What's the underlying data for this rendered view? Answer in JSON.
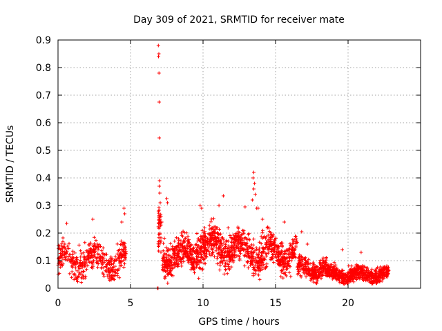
{
  "chart_data": {
    "type": "scatter",
    "title": "Day 309 of 2021, SRMTID for receiver mate",
    "xlabel": "GPS time / hours",
    "ylabel": "SRMTID / TECUs",
    "xlim": [
      0,
      25
    ],
    "ylim": [
      0,
      0.9
    ],
    "xticks": [
      0,
      5,
      10,
      15,
      20
    ],
    "xtick_labels": [
      "0",
      "5",
      "10",
      "15",
      "20"
    ],
    "yticks": [
      0,
      0.1,
      0.2,
      0.3,
      0.4,
      0.5,
      0.6,
      0.7,
      0.8,
      0.9
    ],
    "ytick_labels": [
      "0",
      "0.1",
      "0.2",
      "0.3",
      "0.4",
      "0.5",
      "0.6",
      "0.7",
      "0.8",
      "0.9"
    ],
    "grid": true,
    "marker": "+",
    "color": "#ff0000",
    "series_density": [
      {
        "x": [
          0.0,
          4.7
        ],
        "y_mean": 0.1,
        "y_spread": 0.045,
        "count": 420
      },
      {
        "x": [
          6.9,
          7.1
        ],
        "y_mean": 0.2,
        "y_spread": 0.08,
        "count": 40
      },
      {
        "x": [
          7.2,
          9.5
        ],
        "y_mean": 0.12,
        "y_spread": 0.045,
        "count": 320
      },
      {
        "x": [
          9.5,
          12.5
        ],
        "y_mean": 0.15,
        "y_spread": 0.055,
        "count": 420
      },
      {
        "x": [
          12.5,
          16.5
        ],
        "y_mean": 0.13,
        "y_spread": 0.05,
        "count": 480
      },
      {
        "x": [
          16.5,
          18.5
        ],
        "y_mean": 0.07,
        "y_spread": 0.03,
        "count": 260
      },
      {
        "x": [
          18.5,
          22.8
        ],
        "y_mean": 0.05,
        "y_spread": 0.022,
        "count": 620
      }
    ],
    "outliers": [
      {
        "x": 6.92,
        "y": 0.88
      },
      {
        "x": 6.95,
        "y": 0.85
      },
      {
        "x": 6.93,
        "y": 0.84
      },
      {
        "x": 6.96,
        "y": 0.78
      },
      {
        "x": 6.97,
        "y": 0.675
      },
      {
        "x": 6.98,
        "y": 0.545
      },
      {
        "x": 7.0,
        "y": 0.39
      },
      {
        "x": 6.98,
        "y": 0.37
      },
      {
        "x": 7.02,
        "y": 0.345
      },
      {
        "x": 7.05,
        "y": 0.31
      },
      {
        "x": 7.1,
        "y": 0.26
      },
      {
        "x": 7.15,
        "y": 0.24
      },
      {
        "x": 7.5,
        "y": 0.325
      },
      {
        "x": 7.55,
        "y": 0.31
      },
      {
        "x": 0.6,
        "y": 0.235
      },
      {
        "x": 2.4,
        "y": 0.25
      },
      {
        "x": 4.55,
        "y": 0.29
      },
      {
        "x": 4.6,
        "y": 0.27
      },
      {
        "x": 4.4,
        "y": 0.24
      },
      {
        "x": 9.8,
        "y": 0.3
      },
      {
        "x": 9.9,
        "y": 0.29
      },
      {
        "x": 11.1,
        "y": 0.3
      },
      {
        "x": 11.4,
        "y": 0.335
      },
      {
        "x": 12.9,
        "y": 0.295
      },
      {
        "x": 13.5,
        "y": 0.42
      },
      {
        "x": 13.45,
        "y": 0.4
      },
      {
        "x": 13.55,
        "y": 0.38
      },
      {
        "x": 13.5,
        "y": 0.36
      },
      {
        "x": 13.6,
        "y": 0.34
      },
      {
        "x": 13.4,
        "y": 0.32
      },
      {
        "x": 13.7,
        "y": 0.29
      },
      {
        "x": 13.8,
        "y": 0.29
      },
      {
        "x": 14.1,
        "y": 0.25
      },
      {
        "x": 15.6,
        "y": 0.24
      },
      {
        "x": 16.8,
        "y": 0.205
      },
      {
        "x": 17.2,
        "y": 0.16
      },
      {
        "x": 19.6,
        "y": 0.14
      },
      {
        "x": 20.9,
        "y": 0.13
      },
      {
        "x": 6.85,
        "y": 0.0
      },
      {
        "x": 6.9,
        "y": 0.0
      }
    ]
  }
}
